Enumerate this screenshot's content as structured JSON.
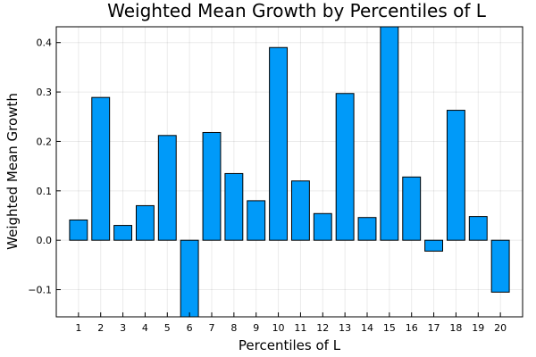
{
  "chart_data": {
    "type": "bar",
    "title": "Weighted Mean Growth by Percentiles of L",
    "xlabel": "Percentiles of L",
    "ylabel": "Weighted Mean Growth",
    "categories": [
      "1",
      "2",
      "3",
      "4",
      "5",
      "6",
      "7",
      "8",
      "9",
      "10",
      "11",
      "12",
      "13",
      "14",
      "15",
      "16",
      "17",
      "18",
      "19",
      "20"
    ],
    "values": [
      0.041,
      0.289,
      0.03,
      0.07,
      0.212,
      -0.16,
      0.218,
      0.135,
      0.08,
      0.39,
      0.12,
      0.054,
      0.297,
      0.046,
      0.432,
      0.128,
      -0.022,
      0.263,
      0.048,
      -0.105
    ],
    "ylim": [
      -0.155,
      0.432
    ],
    "yticks": [
      -0.1,
      0.0,
      0.1,
      0.2,
      0.3,
      0.4
    ],
    "ytick_labels": [
      "−0.1",
      "0.0",
      "0.1",
      "0.2",
      "0.3",
      "0.4"
    ],
    "bar_color": "#009af9",
    "grid": true,
    "legend": "none"
  }
}
